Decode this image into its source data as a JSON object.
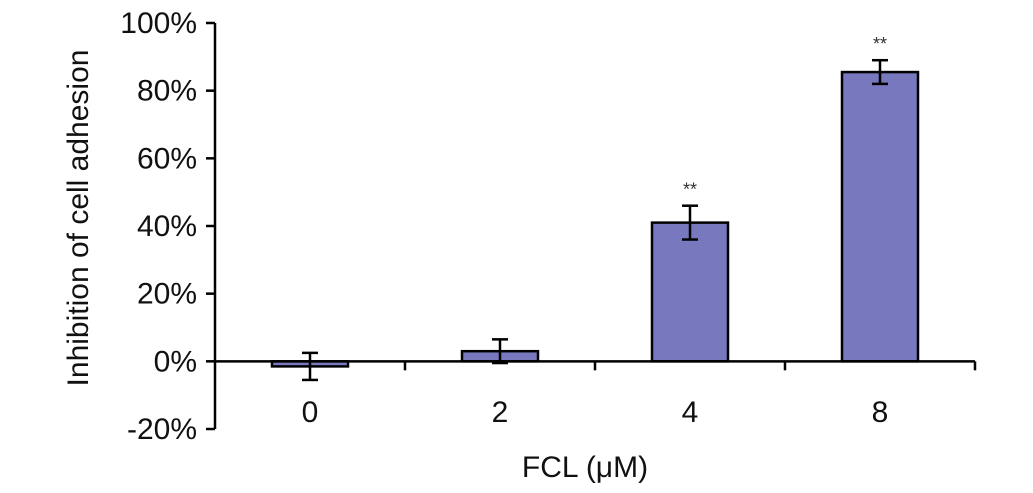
{
  "chart_data": {
    "type": "bar",
    "xlabel": "FCL (μM)",
    "ylabel": "Inhibition of cell adhesion",
    "categories": [
      "0",
      "2",
      "4",
      "8"
    ],
    "values": [
      -1.5,
      3,
      41,
      85.5
    ],
    "errors": [
      4,
      3.5,
      5,
      3.5
    ],
    "annotations": [
      "",
      "",
      "**",
      "**"
    ],
    "ylim": [
      -20,
      100
    ],
    "yticks": [
      -20,
      0,
      20,
      40,
      60,
      80,
      100
    ],
    "ytick_labels": [
      "-20%",
      "0%",
      "20%",
      "40%",
      "60%",
      "80%",
      "100%"
    ],
    "bar_color": "#7778bd",
    "grid": false,
    "legend": "none"
  }
}
